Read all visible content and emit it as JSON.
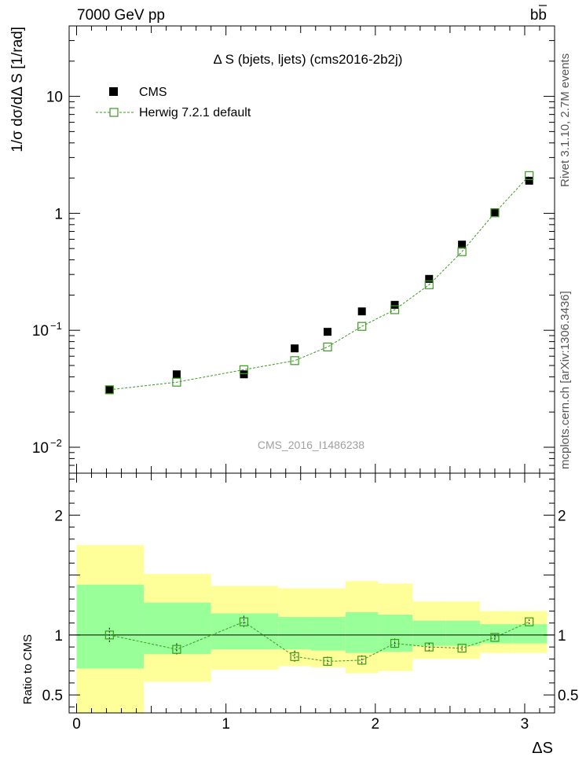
{
  "header": {
    "left": "7000 GeV pp",
    "right_main": "bb",
    "right_bar": "b"
  },
  "side": {
    "rivet": "Rivet 3.1.10, 2.7M events",
    "mcplots": "mcplots.cern.ch [arXiv:1306.3436]"
  },
  "chart_data": [
    {
      "type": "scatter",
      "title": "Δ S (bjets, ljets) (cms2016-2b2j)",
      "ylabel": "1/σ dσ/dΔ S [1/rad]",
      "yscale": "log",
      "ylim": [
        0.006,
        40
      ],
      "xlim": [
        -0.05,
        3.2
      ],
      "watermark": "CMS_2016_I1486238",
      "y_ticks": [
        {
          "value": 10,
          "label": "10"
        },
        {
          "value": 1,
          "label": "1"
        },
        {
          "value": 0.1,
          "label": "10",
          "exp": "−1"
        },
        {
          "value": 0.01,
          "label": "10",
          "exp": "−2"
        }
      ],
      "legend_position": "top-left",
      "series": [
        {
          "name": "CMS",
          "marker": "filled-square",
          "color": "#000000",
          "x": [
            0.22,
            0.67,
            1.12,
            1.46,
            1.68,
            1.91,
            2.13,
            2.36,
            2.58,
            2.8,
            3.03
          ],
          "y": [
            0.031,
            0.042,
            0.042,
            0.07,
            0.097,
            0.145,
            0.165,
            0.275,
            0.54,
            1.02,
            1.9
          ]
        },
        {
          "name": "Herwig 7.2.1 default",
          "marker": "open-square",
          "color": "#3a9a1e",
          "line": "dashed",
          "x": [
            0.22,
            0.67,
            1.12,
            1.46,
            1.68,
            1.91,
            2.13,
            2.36,
            2.58,
            2.8,
            3.03
          ],
          "y": [
            0.031,
            0.036,
            0.046,
            0.055,
            0.072,
            0.108,
            0.15,
            0.245,
            0.47,
            1.01,
            2.1
          ]
        }
      ]
    },
    {
      "type": "scatter",
      "ylabel": "Ratio to CMS",
      "xlabel": "ΔS",
      "ylim": [
        0.35,
        2.35
      ],
      "xlim": [
        -0.05,
        3.2
      ],
      "y_ticks": [
        {
          "value": 2,
          "label": "2"
        },
        {
          "value": 1,
          "label": "1"
        },
        {
          "value": 0.5,
          "label": "0.5"
        }
      ],
      "x_ticks": [
        {
          "value": 0,
          "label": "0"
        },
        {
          "value": 1,
          "label": "1"
        },
        {
          "value": 2,
          "label": "2"
        },
        {
          "value": 3,
          "label": "3"
        }
      ],
      "bands": [
        {
          "x0": 0.0,
          "x1": 0.45,
          "yellow": [
            0.35,
            1.75
          ],
          "green": [
            0.72,
            1.42
          ]
        },
        {
          "x0": 0.45,
          "x1": 0.9,
          "yellow": [
            0.61,
            1.51
          ],
          "green": [
            0.84,
            1.27
          ]
        },
        {
          "x0": 0.9,
          "x1": 1.35,
          "yellow": [
            0.71,
            1.41
          ],
          "green": [
            0.88,
            1.18
          ]
        },
        {
          "x0": 1.35,
          "x1": 1.57,
          "yellow": [
            0.74,
            1.39
          ],
          "green": [
            0.88,
            1.15
          ]
        },
        {
          "x0": 1.57,
          "x1": 1.8,
          "yellow": [
            0.73,
            1.39
          ],
          "green": [
            0.87,
            1.15
          ]
        },
        {
          "x0": 1.8,
          "x1": 2.02,
          "yellow": [
            0.68,
            1.45
          ],
          "green": [
            0.85,
            1.19
          ]
        },
        {
          "x0": 2.02,
          "x1": 2.25,
          "yellow": [
            0.7,
            1.43
          ],
          "green": [
            0.86,
            1.17
          ]
        },
        {
          "x0": 2.25,
          "x1": 2.47,
          "yellow": [
            0.8,
            1.28
          ],
          "green": [
            0.91,
            1.12
          ]
        },
        {
          "x0": 2.47,
          "x1": 2.7,
          "yellow": [
            0.8,
            1.28
          ],
          "green": [
            0.91,
            1.12
          ]
        },
        {
          "x0": 2.7,
          "x1": 2.92,
          "yellow": [
            0.85,
            1.2
          ],
          "green": [
            0.93,
            1.09
          ]
        },
        {
          "x0": 2.92,
          "x1": 3.15,
          "yellow": [
            0.85,
            1.2
          ],
          "green": [
            0.93,
            1.09
          ]
        }
      ],
      "series": [
        {
          "name": "Herwig 7.2.1 default",
          "color": "#3a9a1e",
          "x": [
            0.22,
            0.67,
            1.12,
            1.46,
            1.68,
            1.91,
            2.13,
            2.36,
            2.58,
            2.8,
            3.03
          ],
          "y": [
            1.0,
            0.88,
            1.11,
            0.82,
            0.78,
            0.79,
            0.93,
            0.9,
            0.89,
            0.98,
            1.11
          ],
          "err": [
            0.06,
            0.05,
            0.05,
            0.05,
            0.04,
            0.04,
            0.04,
            0.03,
            0.02,
            0.02,
            0.02
          ]
        }
      ]
    }
  ]
}
